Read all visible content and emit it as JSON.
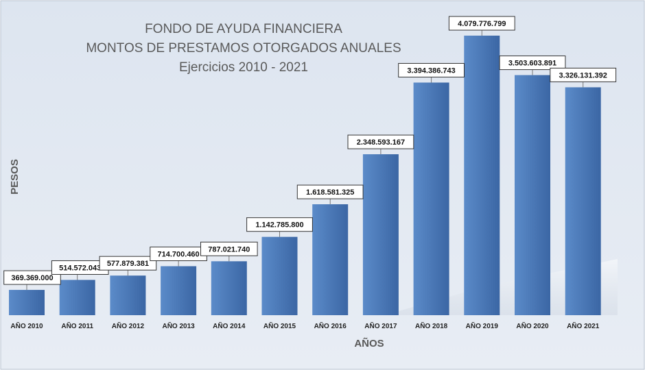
{
  "chart_data": {
    "type": "bar",
    "title_lines": [
      "FONDO DE AYUDA FINANCIERA",
      "MONTOS DE PRESTAMOS OTORGADOS ANUALES",
      "Ejercicios 2010 - 2021"
    ],
    "xlabel": "AÑOS",
    "ylabel": "PESOS",
    "categories": [
      "AÑO 2010",
      "AÑO 2011",
      "AÑO 2012",
      "AÑO 2013",
      "AÑO 2014",
      "AÑO 2015",
      "AÑO 2016",
      "AÑO 2017",
      "AÑO 2018",
      "AÑO 2019",
      "AÑO 2020",
      "AÑO 2021"
    ],
    "values": [
      369369000,
      514572043,
      577879381,
      714700460,
      787021740,
      1142785800,
      1618581325,
      2348593167,
      3394386743,
      4079776799,
      3503603891,
      3326131392
    ],
    "data_labels": [
      "369.369.000",
      "514.572.043",
      "577.879.381",
      "714.700.460",
      "787.021.740",
      "1.142.785.800",
      "1.618.581.325",
      "2.348.593.167",
      "3.394.386.743",
      "4.079.776.799",
      "3.503.603.891",
      "3.326.131.392"
    ],
    "ylim": [
      0,
      4079776799
    ],
    "grid": false,
    "legend": "none",
    "colors": {
      "background_top": "#dde5f0",
      "background_bottom": "#e8edf4",
      "bar_light": "#5b8bc9",
      "bar_dark": "#3b66a4",
      "title": "#595959"
    }
  }
}
